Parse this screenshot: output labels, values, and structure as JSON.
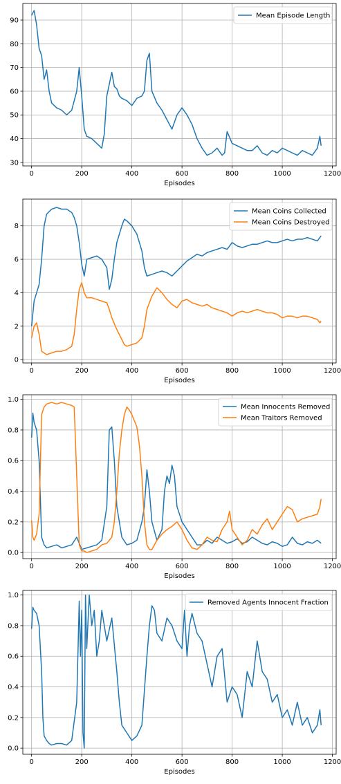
{
  "chart_data": [
    {
      "type": "line",
      "title": "",
      "xlabel": "Episodes",
      "ylabel": "",
      "xlim": [
        -35,
        1215
      ],
      "ylim": [
        28.5,
        97
      ],
      "xticks": [
        0,
        200,
        400,
        600,
        800,
        1000,
        1200
      ],
      "yticks": [
        30,
        40,
        50,
        60,
        70,
        80,
        90
      ],
      "grid": true,
      "legend_position": "top-right",
      "series": [
        {
          "name": "Mean Episode Length",
          "color": "#1f77b4",
          "x": [
            0,
            10,
            20,
            30,
            40,
            50,
            60,
            70,
            80,
            100,
            120,
            140,
            160,
            180,
            190,
            195,
            200,
            210,
            220,
            240,
            260,
            280,
            290,
            300,
            310,
            320,
            330,
            340,
            350,
            360,
            380,
            400,
            420,
            440,
            450,
            460,
            470,
            480,
            500,
            520,
            540,
            560,
            580,
            600,
            620,
            640,
            660,
            680,
            700,
            720,
            740,
            760,
            770,
            780,
            800,
            820,
            840,
            860,
            880,
            900,
            920,
            940,
            960,
            980,
            1000,
            1020,
            1040,
            1060,
            1080,
            1100,
            1120,
            1140,
            1150,
            1155
          ],
          "values": [
            92,
            94,
            88,
            78,
            75,
            65,
            69,
            60,
            55,
            53,
            52,
            50,
            52,
            60,
            70,
            64,
            58,
            44,
            41,
            40,
            38,
            36,
            42,
            58,
            63,
            68,
            62,
            61,
            58,
            57,
            56,
            54,
            57,
            58,
            60,
            73,
            76,
            60,
            55,
            52,
            48,
            44,
            50,
            53,
            50,
            46,
            40,
            36,
            33,
            34,
            36,
            33,
            34,
            43,
            38,
            37,
            36,
            35,
            35,
            37,
            34,
            33,
            35,
            34,
            36,
            35,
            34,
            33,
            35,
            34,
            33,
            36,
            41,
            37
          ]
        }
      ]
    },
    {
      "type": "line",
      "title": "",
      "xlabel": "Episodes",
      "ylabel": "",
      "xlim": [
        -35,
        1215
      ],
      "ylim": [
        -0.2,
        9.6
      ],
      "xticks": [
        0,
        200,
        400,
        600,
        800,
        1000,
        1200
      ],
      "yticks": [
        0,
        2,
        4,
        6,
        8
      ],
      "grid": true,
      "legend_position": "top-right",
      "series": [
        {
          "name": "Mean Coins Collected",
          "color": "#1f77b4",
          "x": [
            0,
            10,
            20,
            30,
            40,
            50,
            60,
            80,
            100,
            120,
            140,
            160,
            170,
            180,
            190,
            200,
            210,
            220,
            240,
            260,
            280,
            300,
            310,
            320,
            330,
            340,
            360,
            370,
            380,
            400,
            420,
            440,
            450,
            460,
            480,
            500,
            520,
            540,
            560,
            580,
            600,
            620,
            640,
            660,
            680,
            700,
            720,
            740,
            760,
            780,
            800,
            820,
            840,
            860,
            880,
            900,
            920,
            940,
            960,
            980,
            1000,
            1020,
            1040,
            1060,
            1080,
            1100,
            1120,
            1140,
            1155
          ],
          "values": [
            2.0,
            3.5,
            4.0,
            4.5,
            6.0,
            8.0,
            8.7,
            9.0,
            9.1,
            9.0,
            9.0,
            8.8,
            8.5,
            8.0,
            7.0,
            5.7,
            5.0,
            6.0,
            6.1,
            6.2,
            6.0,
            5.5,
            4.2,
            4.8,
            6.0,
            7.0,
            8.0,
            8.4,
            8.3,
            8.0,
            7.5,
            6.5,
            5.5,
            5.0,
            5.1,
            5.2,
            5.3,
            5.2,
            5.0,
            5.3,
            5.6,
            5.9,
            6.1,
            6.3,
            6.2,
            6.4,
            6.5,
            6.6,
            6.7,
            6.6,
            7.0,
            6.8,
            6.7,
            6.8,
            6.9,
            6.9,
            7.0,
            7.1,
            7.0,
            7.0,
            7.1,
            7.2,
            7.1,
            7.2,
            7.2,
            7.3,
            7.2,
            7.1,
            7.4
          ]
        },
        {
          "name": "Mean Coins Destroyed",
          "color": "#ff7f0e",
          "x": [
            0,
            10,
            20,
            30,
            40,
            50,
            60,
            80,
            100,
            120,
            140,
            160,
            170,
            180,
            190,
            200,
            210,
            220,
            240,
            260,
            280,
            300,
            310,
            320,
            340,
            360,
            370,
            380,
            400,
            420,
            440,
            450,
            460,
            480,
            500,
            520,
            540,
            560,
            580,
            600,
            620,
            640,
            660,
            680,
            700,
            720,
            740,
            760,
            780,
            800,
            820,
            840,
            860,
            880,
            900,
            920,
            940,
            960,
            980,
            1000,
            1020,
            1040,
            1060,
            1080,
            1100,
            1120,
            1140,
            1150,
            1155
          ],
          "values": [
            1.3,
            2.0,
            2.2,
            1.5,
            0.5,
            0.4,
            0.3,
            0.4,
            0.5,
            0.5,
            0.6,
            0.8,
            1.5,
            3.0,
            4.2,
            4.6,
            4.0,
            3.7,
            3.7,
            3.6,
            3.5,
            3.4,
            3.0,
            2.5,
            1.8,
            1.2,
            0.9,
            0.8,
            0.9,
            1.0,
            1.3,
            2.0,
            3.0,
            3.8,
            4.3,
            4.0,
            3.6,
            3.3,
            3.1,
            3.5,
            3.6,
            3.4,
            3.3,
            3.2,
            3.3,
            3.1,
            3.0,
            2.9,
            2.8,
            2.6,
            2.8,
            2.9,
            2.8,
            2.9,
            3.0,
            2.9,
            2.8,
            2.8,
            2.7,
            2.5,
            2.6,
            2.6,
            2.5,
            2.6,
            2.6,
            2.5,
            2.4,
            2.2,
            2.3
          ]
        }
      ]
    },
    {
      "type": "line",
      "title": "",
      "xlabel": "Episodes",
      "ylabel": "",
      "xlim": [
        -35,
        1215
      ],
      "ylim": [
        -0.04,
        1.03
      ],
      "xticks": [
        0,
        200,
        400,
        600,
        800,
        1000,
        1200
      ],
      "yticks": [
        0.0,
        0.2,
        0.4,
        0.6,
        0.8,
        1.0
      ],
      "grid": true,
      "legend_position": "top-right",
      "series": [
        {
          "name": "Mean Innocents Removed",
          "color": "#1f77b4",
          "x": [
            0,
            5,
            10,
            20,
            30,
            40,
            50,
            60,
            80,
            100,
            120,
            140,
            160,
            180,
            200,
            220,
            240,
            260,
            280,
            300,
            310,
            320,
            330,
            340,
            350,
            360,
            380,
            400,
            420,
            440,
            450,
            460,
            470,
            480,
            500,
            520,
            530,
            540,
            550,
            560,
            570,
            580,
            600,
            620,
            640,
            660,
            680,
            700,
            720,
            740,
            760,
            780,
            800,
            820,
            840,
            860,
            880,
            900,
            920,
            940,
            960,
            980,
            1000,
            1020,
            1040,
            1060,
            1080,
            1100,
            1120,
            1140,
            1155
          ],
          "values": [
            0.75,
            0.91,
            0.85,
            0.8,
            0.6,
            0.1,
            0.05,
            0.03,
            0.04,
            0.05,
            0.03,
            0.04,
            0.05,
            0.1,
            0.02,
            0.03,
            0.04,
            0.05,
            0.08,
            0.3,
            0.8,
            0.82,
            0.6,
            0.3,
            0.2,
            0.1,
            0.05,
            0.06,
            0.08,
            0.2,
            0.3,
            0.54,
            0.4,
            0.2,
            0.08,
            0.15,
            0.4,
            0.5,
            0.45,
            0.57,
            0.5,
            0.3,
            0.2,
            0.15,
            0.1,
            0.05,
            0.05,
            0.08,
            0.06,
            0.1,
            0.08,
            0.06,
            0.07,
            0.09,
            0.06,
            0.07,
            0.1,
            0.08,
            0.06,
            0.05,
            0.07,
            0.06,
            0.04,
            0.05,
            0.1,
            0.06,
            0.05,
            0.07,
            0.06,
            0.08,
            0.06
          ]
        },
        {
          "name": "Mean Traitors Removed",
          "color": "#ff7f0e",
          "x": [
            0,
            5,
            10,
            20,
            30,
            40,
            50,
            60,
            80,
            100,
            120,
            140,
            160,
            170,
            180,
            190,
            200,
            210,
            220,
            240,
            260,
            280,
            300,
            320,
            330,
            340,
            350,
            360,
            370,
            380,
            390,
            400,
            420,
            430,
            440,
            450,
            460,
            470,
            480,
            500,
            520,
            540,
            560,
            580,
            600,
            620,
            640,
            660,
            680,
            700,
            720,
            740,
            760,
            780,
            790,
            800,
            820,
            840,
            860,
            880,
            900,
            920,
            940,
            960,
            980,
            1000,
            1020,
            1040,
            1060,
            1080,
            1100,
            1120,
            1140,
            1150,
            1155
          ],
          "values": [
            0.21,
            0.1,
            0.08,
            0.12,
            0.25,
            0.9,
            0.95,
            0.97,
            0.98,
            0.97,
            0.98,
            0.97,
            0.96,
            0.95,
            0.5,
            0.05,
            0.01,
            0.01,
            0.0,
            0.01,
            0.02,
            0.05,
            0.06,
            0.1,
            0.2,
            0.4,
            0.65,
            0.8,
            0.9,
            0.95,
            0.93,
            0.9,
            0.82,
            0.7,
            0.5,
            0.2,
            0.05,
            0.02,
            0.02,
            0.08,
            0.12,
            0.15,
            0.17,
            0.2,
            0.15,
            0.08,
            0.03,
            0.02,
            0.05,
            0.1,
            0.08,
            0.07,
            0.15,
            0.2,
            0.27,
            0.15,
            0.1,
            0.05,
            0.08,
            0.15,
            0.12,
            0.18,
            0.22,
            0.15,
            0.2,
            0.25,
            0.3,
            0.28,
            0.2,
            0.22,
            0.23,
            0.24,
            0.25,
            0.3,
            0.35
          ]
        }
      ]
    },
    {
      "type": "line",
      "title": "",
      "xlabel": "Episodes",
      "ylabel": "",
      "xlim": [
        -35,
        1215
      ],
      "ylim": [
        -0.04,
        1.03
      ],
      "xticks": [
        0,
        200,
        400,
        600,
        800,
        1000,
        1200
      ],
      "yticks": [
        0.0,
        0.2,
        0.4,
        0.6,
        0.8,
        1.0
      ],
      "grid": true,
      "legend_position": "top-right",
      "series": [
        {
          "name": "Removed Agents Innocent Fraction",
          "color": "#1f77b4",
          "x": [
            0,
            5,
            10,
            20,
            30,
            40,
            45,
            50,
            60,
            70,
            80,
            100,
            120,
            140,
            160,
            180,
            190,
            195,
            200,
            205,
            210,
            215,
            220,
            230,
            240,
            250,
            260,
            270,
            280,
            300,
            320,
            340,
            350,
            360,
            380,
            400,
            420,
            440,
            460,
            470,
            480,
            490,
            500,
            520,
            540,
            560,
            580,
            600,
            610,
            620,
            630,
            640,
            660,
            680,
            700,
            720,
            740,
            760,
            780,
            800,
            820,
            840,
            860,
            880,
            900,
            920,
            940,
            960,
            980,
            1000,
            1020,
            1040,
            1060,
            1080,
            1100,
            1120,
            1140,
            1150,
            1155
          ],
          "values": [
            0.78,
            0.92,
            0.9,
            0.88,
            0.8,
            0.5,
            0.2,
            0.08,
            0.05,
            0.03,
            0.02,
            0.03,
            0.03,
            0.02,
            0.05,
            0.3,
            0.96,
            0.6,
            0.9,
            0.1,
            0.0,
            1.0,
            0.65,
            1.0,
            0.8,
            0.9,
            0.6,
            0.7,
            0.9,
            0.7,
            0.85,
            0.5,
            0.3,
            0.15,
            0.1,
            0.05,
            0.08,
            0.15,
            0.6,
            0.8,
            0.93,
            0.9,
            0.75,
            0.7,
            0.85,
            0.8,
            0.7,
            0.65,
            0.9,
            0.6,
            0.8,
            0.88,
            0.75,
            0.7,
            0.55,
            0.4,
            0.6,
            0.65,
            0.3,
            0.4,
            0.35,
            0.2,
            0.5,
            0.4,
            0.7,
            0.5,
            0.45,
            0.3,
            0.35,
            0.2,
            0.25,
            0.15,
            0.3,
            0.15,
            0.2,
            0.1,
            0.15,
            0.25,
            0.15
          ]
        }
      ]
    }
  ]
}
